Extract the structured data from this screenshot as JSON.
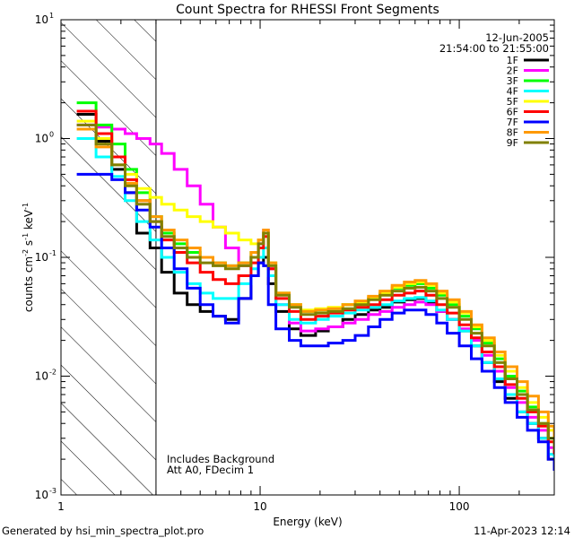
{
  "chart_data": {
    "type": "line",
    "title": "Count Spectra for RHESSI Front Segments",
    "xlabel": "Energy (keV)",
    "ylabel_parts": [
      "counts cm",
      "-2",
      " s",
      "-1",
      " keV",
      "-1"
    ],
    "xscale": "log",
    "yscale": "log",
    "xlim": [
      1,
      300
    ],
    "ylim": [
      0.001,
      10
    ],
    "x_ticks": [
      {
        "value": 1,
        "label": "1"
      },
      {
        "value": 10,
        "label": "10"
      },
      {
        "value": 100,
        "label": "100"
      }
    ],
    "y_ticks": [
      {
        "value": 0.001,
        "base": "10",
        "exp": "-3"
      },
      {
        "value": 0.01,
        "base": "10",
        "exp": "-2"
      },
      {
        "value": 0.1,
        "base": "10",
        "exp": "-1"
      },
      {
        "value": 1,
        "base": "10",
        "exp": "0"
      },
      {
        "value": 10,
        "base": "10",
        "exp": "1"
      }
    ],
    "hatched_region": {
      "x_from": 1,
      "x_to": 3
    },
    "annotations": {
      "date": "12-Jun-2005",
      "time_range": "21:54:00 to 21:55:00",
      "note1": "Includes Background",
      "note2": "Att A0, FDecim 1"
    },
    "footer_left": "Generated by hsi_min_spectra_plot.pro",
    "footer_right": "11-Apr-2023 12:14",
    "energy_bins": [
      1.2,
      1.5,
      1.8,
      2.1,
      2.4,
      2.8,
      3.2,
      3.7,
      4.3,
      5.0,
      5.8,
      6.7,
      7.8,
      9.0,
      9.8,
      10.4,
      11.0,
      12.0,
      14.0,
      16.0,
      19.0,
      22.0,
      26.0,
      30.0,
      35.0,
      40.0,
      46.0,
      53.0,
      60.0,
      68.0,
      77.0,
      87.0,
      100.0,
      115.0,
      130.0,
      150.0,
      170.0,
      195.0,
      220.0,
      250.0,
      280.0,
      300.0
    ],
    "series": [
      {
        "name": "1F",
        "color": "#000000",
        "values": [
          1.6,
          0.95,
          0.55,
          0.35,
          0.16,
          0.12,
          0.075,
          0.05,
          0.04,
          0.035,
          0.032,
          0.03,
          0.045,
          0.07,
          0.09,
          0.1,
          0.06,
          0.035,
          0.025,
          0.022,
          0.024,
          0.026,
          0.03,
          0.033,
          0.036,
          0.038,
          0.042,
          0.044,
          0.045,
          0.042,
          0.035,
          0.03,
          0.024,
          0.018,
          0.013,
          0.009,
          0.0065,
          0.005,
          0.004,
          0.003,
          0.002,
          0.0018
        ]
      },
      {
        "name": "2F",
        "color": "#ff00ff",
        "values": [
          1.3,
          1.25,
          1.2,
          1.1,
          1.0,
          0.9,
          0.75,
          0.55,
          0.4,
          0.28,
          0.18,
          0.12,
          0.085,
          0.1,
          0.13,
          0.17,
          0.08,
          0.04,
          0.028,
          0.024,
          0.025,
          0.026,
          0.028,
          0.03,
          0.033,
          0.035,
          0.038,
          0.04,
          0.042,
          0.04,
          0.035,
          0.03,
          0.025,
          0.02,
          0.015,
          0.011,
          0.008,
          0.006,
          0.0045,
          0.0035,
          0.0025,
          0.002
        ]
      },
      {
        "name": "3F",
        "color": "#00ff00",
        "values": [
          2.0,
          1.3,
          0.9,
          0.55,
          0.35,
          0.22,
          0.16,
          0.13,
          0.11,
          0.1,
          0.09,
          0.085,
          0.09,
          0.11,
          0.14,
          0.16,
          0.09,
          0.05,
          0.04,
          0.035,
          0.036,
          0.037,
          0.04,
          0.042,
          0.045,
          0.05,
          0.055,
          0.058,
          0.06,
          0.055,
          0.048,
          0.04,
          0.032,
          0.025,
          0.019,
          0.014,
          0.01,
          0.0075,
          0.0055,
          0.004,
          0.003,
          0.0025
        ]
      },
      {
        "name": "4F",
        "color": "#00ffff",
        "values": [
          1.0,
          0.7,
          0.48,
          0.3,
          0.2,
          0.14,
          0.1,
          0.075,
          0.06,
          0.05,
          0.045,
          0.045,
          0.06,
          0.08,
          0.1,
          0.12,
          0.07,
          0.04,
          0.03,
          0.028,
          0.03,
          0.032,
          0.034,
          0.036,
          0.038,
          0.04,
          0.043,
          0.045,
          0.046,
          0.043,
          0.036,
          0.03,
          0.024,
          0.018,
          0.013,
          0.0095,
          0.007,
          0.005,
          0.004,
          0.003,
          0.0022,
          0.0018
        ]
      },
      {
        "name": "5F",
        "color": "#ffff00",
        "values": [
          1.4,
          1.0,
          0.7,
          0.5,
          0.38,
          0.32,
          0.28,
          0.25,
          0.22,
          0.2,
          0.18,
          0.16,
          0.14,
          0.13,
          0.14,
          0.16,
          0.09,
          0.05,
          0.04,
          0.036,
          0.037,
          0.038,
          0.04,
          0.042,
          0.046,
          0.05,
          0.056,
          0.06,
          0.062,
          0.058,
          0.05,
          0.042,
          0.034,
          0.026,
          0.02,
          0.015,
          0.011,
          0.008,
          0.006,
          0.0045,
          0.0035,
          0.003
        ]
      },
      {
        "name": "6F",
        "color": "#ff0000",
        "values": [
          1.7,
          1.1,
          0.7,
          0.45,
          0.3,
          0.2,
          0.14,
          0.11,
          0.09,
          0.075,
          0.065,
          0.06,
          0.07,
          0.09,
          0.12,
          0.15,
          0.08,
          0.045,
          0.035,
          0.03,
          0.032,
          0.034,
          0.036,
          0.038,
          0.04,
          0.044,
          0.048,
          0.05,
          0.052,
          0.048,
          0.04,
          0.034,
          0.027,
          0.021,
          0.016,
          0.012,
          0.0085,
          0.0065,
          0.005,
          0.0038,
          0.0028,
          0.0022
        ]
      },
      {
        "name": "7F",
        "color": "#0000ff",
        "values": [
          0.5,
          0.5,
          0.45,
          0.35,
          0.25,
          0.18,
          0.12,
          0.08,
          0.055,
          0.04,
          0.032,
          0.028,
          0.045,
          0.07,
          0.09,
          0.085,
          0.04,
          0.025,
          0.02,
          0.018,
          0.018,
          0.019,
          0.02,
          0.022,
          0.026,
          0.03,
          0.034,
          0.036,
          0.036,
          0.033,
          0.028,
          0.023,
          0.018,
          0.014,
          0.011,
          0.008,
          0.006,
          0.0045,
          0.0035,
          0.0028,
          0.002,
          0.0016
        ]
      },
      {
        "name": "8F",
        "color": "#ff9900",
        "values": [
          1.2,
          0.85,
          0.6,
          0.42,
          0.3,
          0.22,
          0.17,
          0.14,
          0.12,
          0.1,
          0.09,
          0.085,
          0.09,
          0.11,
          0.14,
          0.17,
          0.09,
          0.05,
          0.04,
          0.035,
          0.036,
          0.037,
          0.04,
          0.043,
          0.047,
          0.052,
          0.058,
          0.062,
          0.064,
          0.06,
          0.052,
          0.044,
          0.035,
          0.027,
          0.021,
          0.016,
          0.012,
          0.009,
          0.0068,
          0.005,
          0.0038,
          0.003
        ]
      },
      {
        "name": "9F",
        "color": "#808000",
        "values": [
          1.3,
          0.9,
          0.6,
          0.4,
          0.28,
          0.2,
          0.15,
          0.12,
          0.1,
          0.09,
          0.085,
          0.08,
          0.085,
          0.1,
          0.13,
          0.16,
          0.085,
          0.048,
          0.038,
          0.033,
          0.034,
          0.035,
          0.037,
          0.04,
          0.044,
          0.048,
          0.052,
          0.055,
          0.056,
          0.052,
          0.045,
          0.038,
          0.03,
          0.023,
          0.018,
          0.013,
          0.0095,
          0.007,
          0.0052,
          0.004,
          0.003,
          0.0024
        ]
      }
    ]
  }
}
